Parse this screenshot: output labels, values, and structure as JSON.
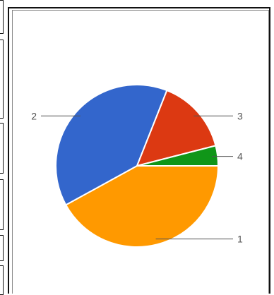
{
  "chart_data": {
    "type": "pie",
    "slices": [
      {
        "label": "1",
        "value": 42,
        "color": "#ff9900"
      },
      {
        "label": "2",
        "value": 39,
        "color": "#3366cc"
      },
      {
        "label": "3",
        "value": 15,
        "color": "#dc3912"
      },
      {
        "label": "4",
        "value": 4,
        "color": "#109618"
      }
    ]
  }
}
